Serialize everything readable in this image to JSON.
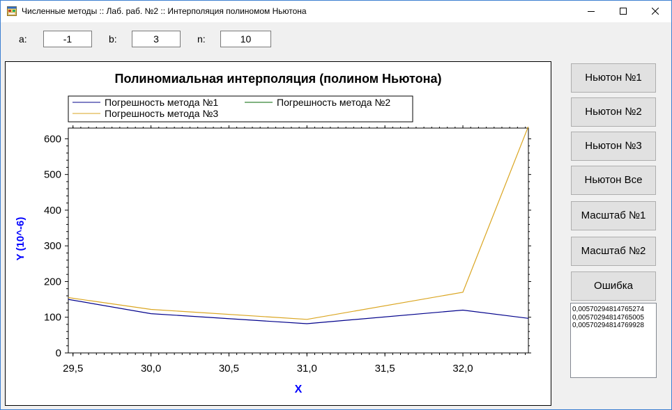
{
  "window": {
    "title": "Численные методы :: Лаб. раб. №2 :: Интерполяция полиномом Ньютона",
    "icons": {
      "app": "app-form-icon",
      "minimize": "minimize-icon",
      "maximize": "maximize-icon",
      "close": "close-icon"
    }
  },
  "params": {
    "a_label": "a:",
    "a_value": "-1",
    "b_label": "b:",
    "b_value": "3",
    "n_label": "n:",
    "n_value": "10"
  },
  "buttons": {
    "newton1": "Ньютон №1",
    "newton2": "Ньютон №2",
    "newton3": "Ньютон №3",
    "newton_all": "Ньютон Все",
    "scale1": "Масштаб №1",
    "scale2": "Масштаб №2",
    "error": "Ошибка"
  },
  "results": [
    "0,00570294814765274",
    "0,00570294814765005",
    "0,00570294814769928"
  ],
  "chart_data": {
    "type": "line",
    "title": "Полиномиальная интерполяция (полином Ньютона)",
    "xlabel": "X",
    "ylabel": "Y (10^-6)",
    "xlim": [
      29.47,
      32.42
    ],
    "ylim": [
      0,
      630
    ],
    "x_ticks": [
      29.5,
      30.0,
      30.5,
      31.0,
      31.5,
      32.0
    ],
    "x_tick_labels": [
      "29,5",
      "30,0",
      "30,5",
      "31,0",
      "31,5",
      "32,0"
    ],
    "y_ticks": [
      0,
      100,
      200,
      300,
      400,
      500,
      600
    ],
    "y_tick_labels": [
      "0",
      "100",
      "200",
      "300",
      "400",
      "500",
      "600"
    ],
    "legend_position": "top",
    "series": [
      {
        "name": "Погрешность метода №1",
        "color": "#00008b",
        "x": [
          29.47,
          30.0,
          31.0,
          32.0,
          32.42
        ],
        "y": [
          150,
          110,
          82,
          120,
          97
        ]
      },
      {
        "name": "Погрешность метода №2",
        "color": "#006400",
        "x": [],
        "y": []
      },
      {
        "name": "Погрешность метода №3",
        "color": "#daa520",
        "x": [
          29.47,
          30.0,
          31.0,
          32.0,
          32.42
        ],
        "y": [
          155,
          122,
          94,
          170,
          635
        ]
      }
    ]
  }
}
